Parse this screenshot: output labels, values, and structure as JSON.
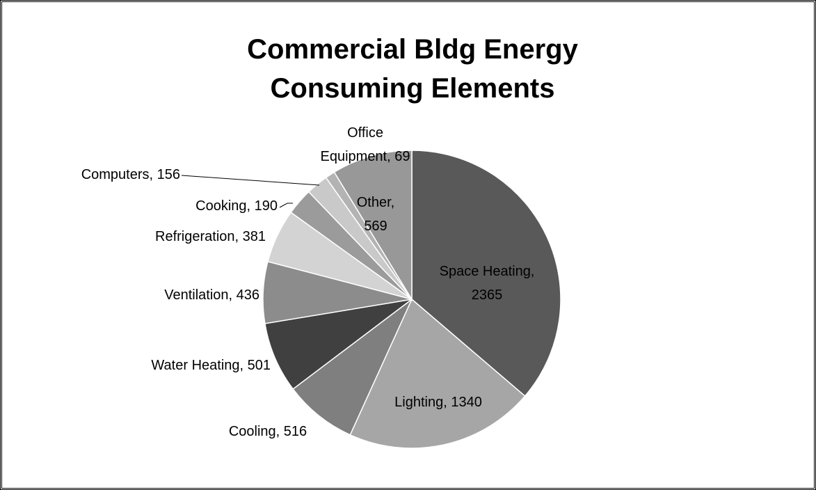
{
  "chart_data": {
    "type": "pie",
    "title": "Commercial Bldg Energy Consuming Elements",
    "labels": [
      "Space Heating, 2365",
      "Lighting, 1340",
      "Cooling, 516",
      "Water Heating, 501",
      "Ventilation, 436",
      "Refrigeration, 381",
      "Cooking, 190",
      "Computers, 156",
      "Office Equipment, 69",
      "Other, 569"
    ],
    "values": [
      2365,
      1340,
      516,
      501,
      436,
      381,
      190,
      156,
      69,
      569
    ],
    "colors": [
      "#595959",
      "#a6a6a6",
      "#7f7f7f",
      "#404040",
      "#8c8c8c",
      "#d3d3d3",
      "#9b9b9b",
      "#c9c9c9",
      "#b3b3b3",
      "#989898"
    ]
  }
}
